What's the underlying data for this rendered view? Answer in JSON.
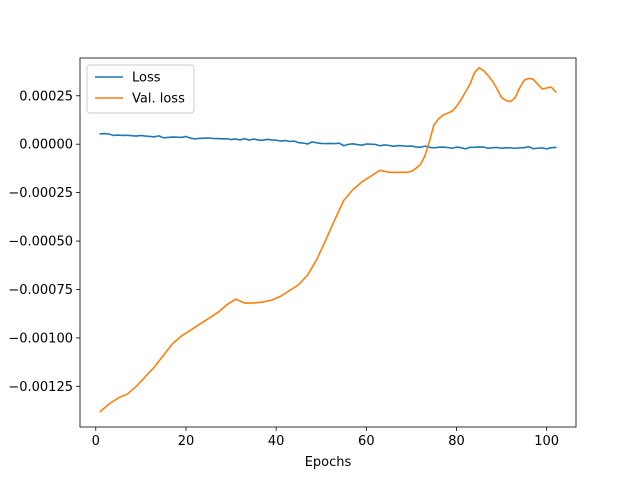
{
  "chart_data": {
    "type": "line",
    "title": "",
    "xlabel": "Epochs",
    "ylabel": "",
    "xlim": [
      -3.5,
      106.5
    ],
    "ylim": [
      -0.00146,
      0.000445
    ],
    "x_ticks": [
      0,
      20,
      40,
      60,
      80,
      100
    ],
    "x_tick_labels": [
      "0",
      "20",
      "40",
      "60",
      "80",
      "100"
    ],
    "y_ticks": [
      0.00025,
      0.0,
      -0.00025,
      -0.0005,
      -0.00075,
      -0.001,
      -0.00125
    ],
    "y_tick_labels": [
      "0.00025",
      "0.00000",
      "−0.00025",
      "−0.00050",
      "−0.00075",
      "−0.00100",
      "−0.00125"
    ],
    "grid": false,
    "legend_placement": "upper-left",
    "series": [
      {
        "name": "Loss",
        "color": "#1f77b4",
        "x": [
          1,
          2,
          3,
          4,
          5,
          6,
          7,
          8,
          9,
          10,
          11,
          12,
          13,
          14,
          15,
          16,
          17,
          18,
          19,
          20,
          21,
          22,
          23,
          24,
          25,
          26,
          27,
          28,
          29,
          30,
          31,
          32,
          33,
          34,
          35,
          36,
          37,
          38,
          39,
          40,
          41,
          42,
          43,
          44,
          45,
          46,
          47,
          48,
          49,
          50,
          51,
          52,
          53,
          54,
          55,
          56,
          57,
          58,
          59,
          60,
          61,
          62,
          63,
          64,
          65,
          66,
          67,
          68,
          69,
          70,
          71,
          72,
          73,
          74,
          75,
          76,
          77,
          78,
          79,
          80,
          81,
          82,
          83,
          84,
          85,
          86,
          87,
          88,
          89,
          90,
          91,
          92,
          93,
          94,
          95,
          96,
          97,
          98,
          99,
          100,
          101,
          102
        ],
        "y": [
          5.3e-05,
          5.5e-05,
          5.2e-05,
          4.5e-05,
          4.7e-05,
          4.5e-05,
          4.6e-05,
          4.4e-05,
          4.2e-05,
          4.5e-05,
          4.2e-05,
          4e-05,
          3.8e-05,
          4.3e-05,
          3.3e-05,
          3.5e-05,
          3.7e-05,
          3.6e-05,
          3.5e-05,
          4e-05,
          3.1e-05,
          2.8e-05,
          3e-05,
          3.1e-05,
          3.2e-05,
          3e-05,
          2.9e-05,
          2.8e-05,
          2.8e-05,
          2.4e-05,
          2.7e-05,
          2.2e-05,
          2.9e-05,
          2.1e-05,
          2.7e-05,
          2.2e-05,
          2e-05,
          2.5e-05,
          2.2e-05,
          2.1e-05,
          1.6e-05,
          1.9e-05,
          1.4e-05,
          1.6e-05,
          8e-06,
          6e-06,
          1e-06,
          1.2e-05,
          7e-06,
          4e-06,
          3e-06,
          4e-06,
          3e-06,
          5e-06,
          -8e-06,
          -1e-06,
          2e-06,
          -2e-06,
          -5e-06,
          1e-06,
          0.0,
          -1e-06,
          -8e-06,
          -4e-06,
          -6e-06,
          -1.1e-05,
          -7e-06,
          -8e-06,
          -1.1e-05,
          -9e-06,
          -1.4e-05,
          -1.6e-05,
          -1e-05,
          -1.6e-05,
          -1.9e-05,
          -1.6e-05,
          -1.5e-05,
          -1.7e-05,
          -2.1e-05,
          -1.5e-05,
          -1.8e-05,
          -2.4e-05,
          -1.6e-05,
          -1.6e-05,
          -1.4e-05,
          -1.5e-05,
          -2.1e-05,
          -1.8e-05,
          -1.7e-05,
          -2.1e-05,
          -1.8e-05,
          -1.9e-05,
          -2.1e-05,
          -1.9e-05,
          -1.8e-05,
          -1.3e-05,
          -2.3e-05,
          -2.1e-05,
          -1.9e-05,
          -2.4e-05,
          -1.8e-05,
          -1.7e-05
        ]
      },
      {
        "name": "Val. loss",
        "color": "#ff7f0e",
        "x": [
          1,
          3,
          5,
          7,
          9,
          11,
          13,
          15,
          17,
          19,
          21,
          23,
          25,
          27,
          29,
          31,
          33,
          35,
          37,
          39,
          41,
          43,
          45,
          47,
          49,
          51,
          53,
          55,
          57,
          59,
          61,
          63,
          65,
          67,
          69,
          70,
          71,
          72,
          73,
          74,
          75,
          76,
          77,
          78,
          79,
          80,
          81,
          82,
          83,
          84,
          85,
          86,
          87,
          88,
          89,
          90,
          91,
          92,
          93,
          94,
          95,
          96,
          97,
          98,
          99,
          100,
          101,
          102
        ],
        "y": [
          -0.00138,
          -0.00134,
          -0.00131,
          -0.00129,
          -0.00125,
          -0.0012,
          -0.00115,
          -0.00109,
          -0.00103,
          -0.00099,
          -0.00096,
          -0.00093,
          -0.0009,
          -0.00087,
          -0.00083,
          -0.0008,
          -0.00082,
          -0.00082,
          -0.000815,
          -0.000805,
          -0.000785,
          -0.000755,
          -0.000725,
          -0.000675,
          -0.000595,
          -0.000495,
          -0.00039,
          -0.00029,
          -0.000235,
          -0.000195,
          -0.000165,
          -0.000135,
          -0.000145,
          -0.000145,
          -0.000145,
          -0.00014,
          -0.000125,
          -0.000105,
          -6e-05,
          1.5e-05,
          0.0001,
          0.00013,
          0.00015,
          0.00016,
          0.00017,
          0.000195,
          0.00023,
          0.00027,
          0.00031,
          0.00037,
          0.000395,
          0.00038,
          0.000355,
          0.000325,
          0.000285,
          0.00024,
          0.000225,
          0.00022,
          0.00024,
          0.00029,
          0.00033,
          0.00034,
          0.000335,
          0.00031,
          0.000285,
          0.00029,
          0.000295,
          0.00027
        ]
      }
    ]
  }
}
